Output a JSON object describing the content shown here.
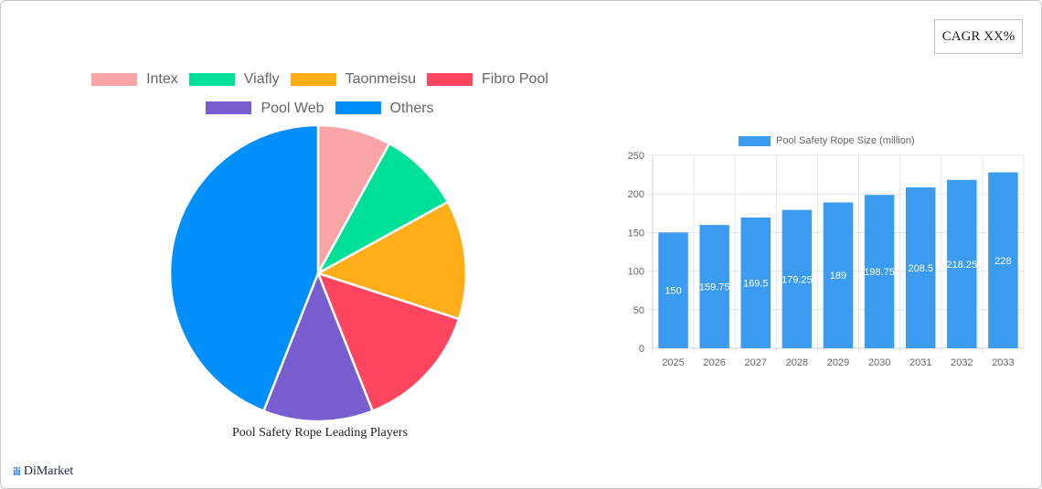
{
  "cagr_label": "CAGR XX%",
  "brand": {
    "logo": "ili",
    "name": "DiMarket"
  },
  "chart_data": [
    {
      "type": "pie",
      "title": "Pool Safety Rope Leading Players",
      "legend_position": "top",
      "categories": [
        "Intex",
        "Viafly",
        "Taonmeisu",
        "Fibro Pool",
        "Pool Web",
        "Others"
      ],
      "values": [
        8,
        9,
        13,
        14,
        12,
        44
      ],
      "colors": [
        "#f9a5a8",
        "#00e096",
        "#ffae19",
        "#ff4560",
        "#775dd0",
        "#008ffb"
      ]
    },
    {
      "type": "bar",
      "title": "",
      "legend": [
        "Pool Safety Rope Size (million)"
      ],
      "legend_position": "top",
      "categories": [
        "2025",
        "2026",
        "2027",
        "2028",
        "2029",
        "2030",
        "2031",
        "2032",
        "2033"
      ],
      "series": [
        {
          "name": "Pool Safety Rope Size (million)",
          "values": [
            150,
            159.75,
            169.5,
            179.25,
            189,
            198.75,
            208.5,
            218.25,
            228
          ]
        }
      ],
      "value_labels": [
        "150",
        "159.75",
        "169.5",
        "179.25",
        "189",
        "198.75",
        "208.5",
        "218.25",
        "228"
      ],
      "ylim": [
        0,
        250
      ],
      "yticks": [
        "0",
        "50",
        "100",
        "150",
        "200",
        "250"
      ],
      "grid": true,
      "color": "#3a9bef",
      "xlabel": "",
      "ylabel": ""
    }
  ]
}
